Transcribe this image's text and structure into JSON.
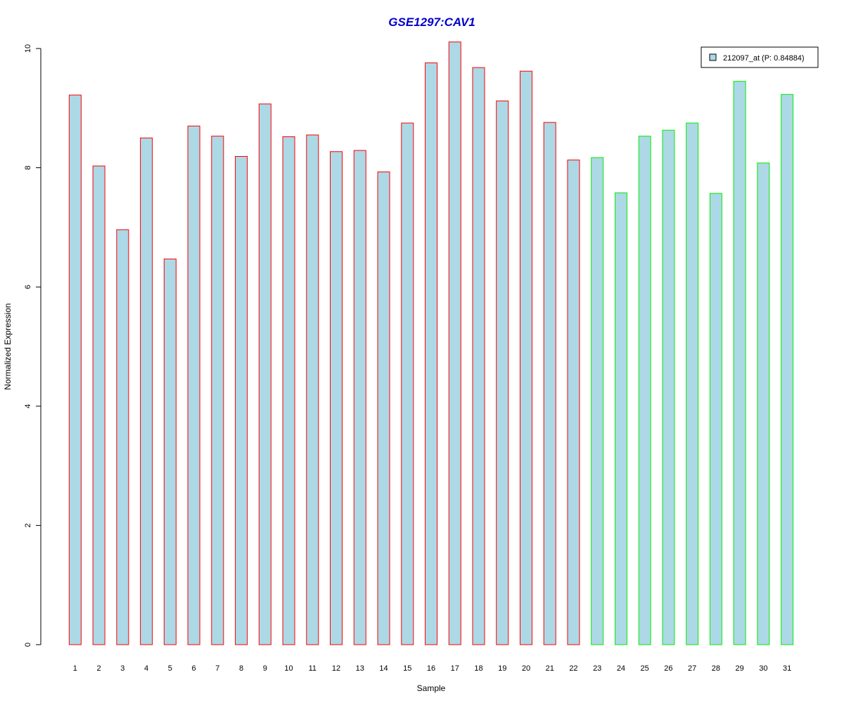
{
  "chart_data": {
    "type": "bar",
    "title": "GSE1297:CAV1",
    "xlabel": "Sample",
    "ylabel": "Normalized Expression",
    "ylim": [
      0,
      10
    ],
    "yticks": [
      0,
      2,
      4,
      6,
      8,
      10
    ],
    "categories": [
      "1",
      "2",
      "3",
      "4",
      "5",
      "6",
      "7",
      "8",
      "9",
      "10",
      "11",
      "12",
      "13",
      "14",
      "15",
      "16",
      "17",
      "18",
      "19",
      "20",
      "21",
      "22",
      "23",
      "24",
      "25",
      "26",
      "27",
      "28",
      "29",
      "30",
      "31"
    ],
    "series": [
      {
        "name": "212097_at (P: 0.84884)",
        "values": [
          9.22,
          8.03,
          6.96,
          8.5,
          6.47,
          8.7,
          8.53,
          8.19,
          9.07,
          8.52,
          8.55,
          8.27,
          8.29,
          7.93,
          8.75,
          9.76,
          10.11,
          9.68,
          9.12,
          9.62,
          8.76,
          8.13,
          8.17,
          7.58,
          8.53,
          8.63,
          8.75,
          7.57,
          9.45,
          8.08,
          9.23
        ]
      }
    ],
    "groups": [
      {
        "samples": [
          1,
          22
        ],
        "border_color": "#ff0000"
      },
      {
        "samples": [
          23,
          31
        ],
        "border_color": "#00ee00"
      }
    ],
    "fill_color": "#add8e6",
    "title_color": "#0000cc",
    "legend": {
      "placement": "top-right",
      "label": "212097_at (P: 0.84884)"
    },
    "grid": false
  }
}
